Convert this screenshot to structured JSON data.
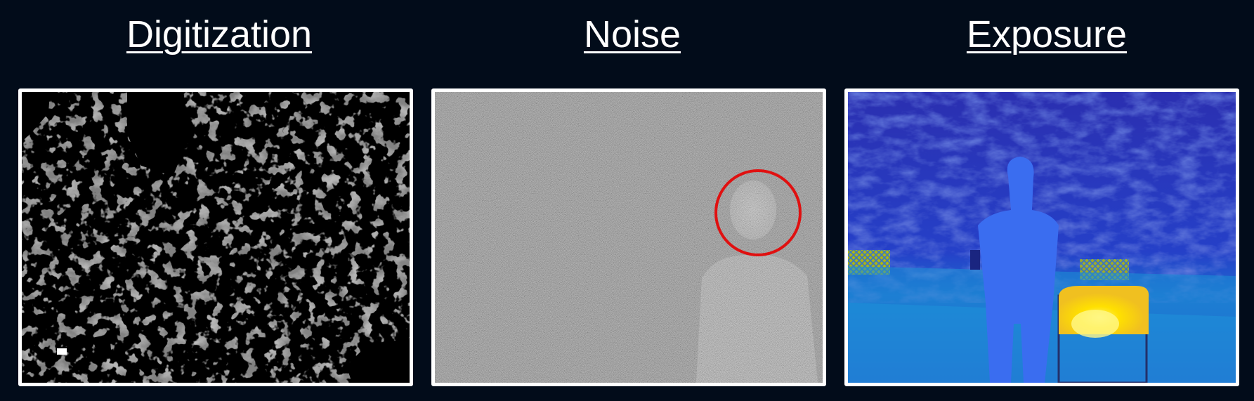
{
  "panels": [
    {
      "key": "digitization",
      "title": "Digitization",
      "image_description": "grayscale thermal image of foliage with black dropout patches"
    },
    {
      "key": "noise",
      "title": "Noise",
      "image_description": "heavily noisy grayscale thermal image of a person, head circled in red"
    },
    {
      "key": "exposure",
      "title": "Exposure",
      "image_description": "false-color thermal image of a person beside a yellow hot object"
    }
  ],
  "colors": {
    "background": "#020c1a",
    "frame_border": "#ffffff",
    "title_text": "#ffffff",
    "highlight_circle": "#e01010",
    "exposure_cold": "#1e3fc0",
    "exposure_hot": "#ffe000"
  }
}
